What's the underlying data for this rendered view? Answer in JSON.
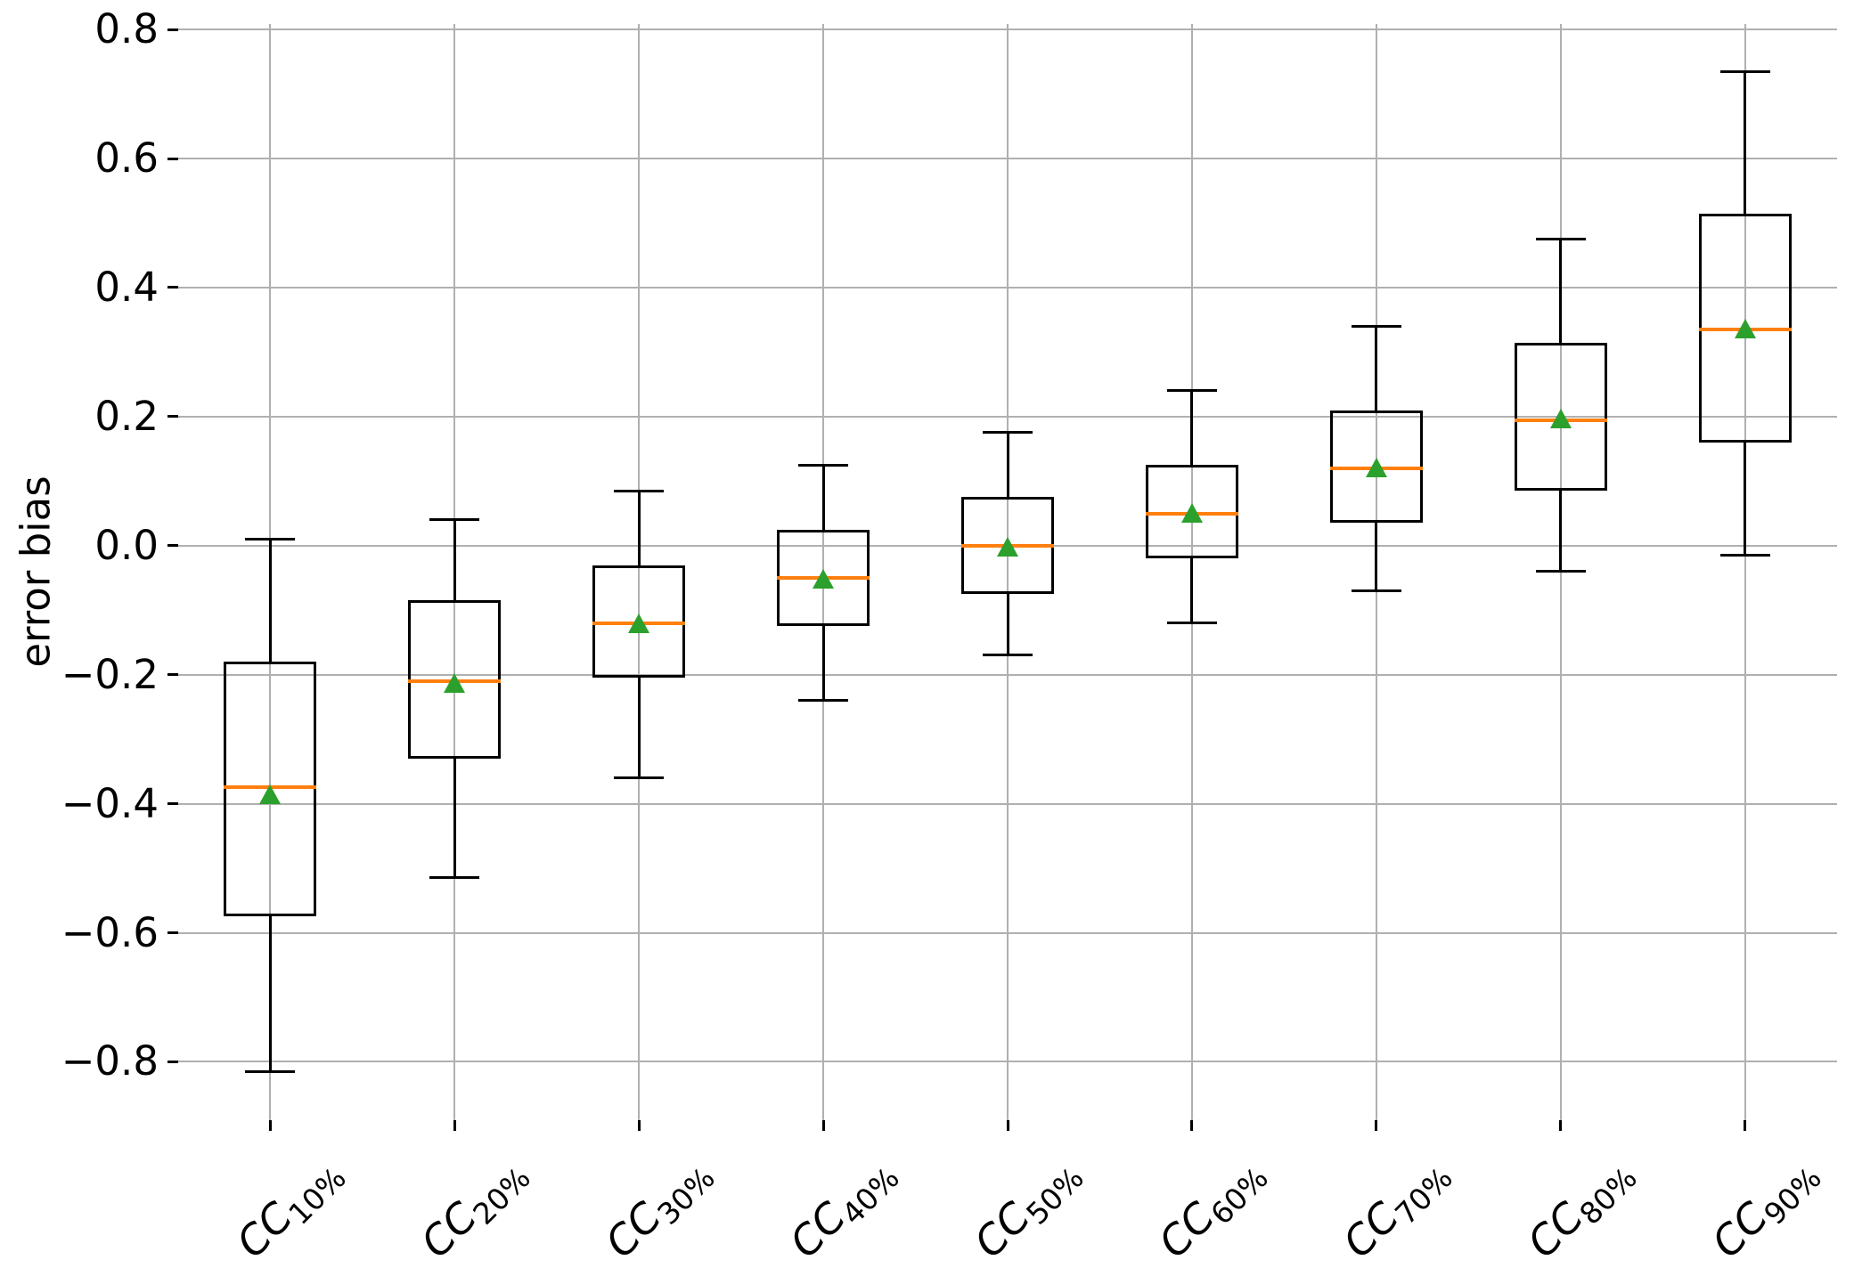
{
  "chart_data": {
    "type": "boxplot",
    "title": "",
    "xlabel": "",
    "ylabel": "error bias",
    "grid": true,
    "legend": "none",
    "ylim": [
      -0.8905,
      0.8085
    ],
    "yticks": [
      0.8,
      0.6,
      0.4,
      0.2,
      0.0,
      -0.2,
      -0.4,
      -0.6,
      -0.8
    ],
    "ytick_labels": [
      "0.8",
      "0.6",
      "0.4",
      "0.2",
      "0.0",
      "−0.2",
      "−0.4",
      "−0.6",
      "−0.8"
    ],
    "xticklabel_rotation": 45,
    "categories": [
      "CC 10%",
      "CC 20%",
      "CC 30%",
      "CC 40%",
      "CC 50%",
      "CC 60%",
      "CC 70%",
      "CC 80%",
      "CC 90%"
    ],
    "colors": {
      "box_line": "#000000",
      "whisker_line": "#000000",
      "median_line": "#ff7f0e",
      "mean_marker": "#2ca02c",
      "grid_line": "#b0b0b0"
    },
    "boxes": [
      {
        "label_main": "CC",
        "label_sub": "10%",
        "whisker_low": -0.815,
        "q1": -0.575,
        "median": -0.375,
        "mean": -0.385,
        "q3": -0.18,
        "whisker_high": 0.01
      },
      {
        "label_main": "CC",
        "label_sub": "20%",
        "whisker_low": -0.515,
        "q1": -0.33,
        "median": -0.21,
        "mean": -0.213,
        "q3": -0.085,
        "whisker_high": 0.04
      },
      {
        "label_main": "CC",
        "label_sub": "30%",
        "whisker_low": -0.36,
        "q1": -0.205,
        "median": -0.12,
        "mean": -0.12,
        "q3": -0.03,
        "whisker_high": 0.085
      },
      {
        "label_main": "CC",
        "label_sub": "40%",
        "whisker_low": -0.24,
        "q1": -0.125,
        "median": -0.05,
        "mean": -0.051,
        "q3": 0.025,
        "whisker_high": 0.125
      },
      {
        "label_main": "CC",
        "label_sub": "50%",
        "whisker_low": -0.17,
        "q1": -0.075,
        "median": 0.0,
        "mean": -0.001,
        "q3": 0.075,
        "whisker_high": 0.175
      },
      {
        "label_main": "CC",
        "label_sub": "60%",
        "whisker_low": -0.12,
        "q1": -0.02,
        "median": 0.05,
        "mean": 0.051,
        "q3": 0.125,
        "whisker_high": 0.24
      },
      {
        "label_main": "CC",
        "label_sub": "70%",
        "whisker_low": -0.07,
        "q1": 0.035,
        "median": 0.12,
        "mean": 0.121,
        "q3": 0.21,
        "whisker_high": 0.34
      },
      {
        "label_main": "CC",
        "label_sub": "80%",
        "whisker_low": -0.04,
        "q1": 0.085,
        "median": 0.195,
        "mean": 0.197,
        "q3": 0.315,
        "whisker_high": 0.475
      },
      {
        "label_main": "CC",
        "label_sub": "90%",
        "whisker_low": -0.015,
        "q1": 0.16,
        "median": 0.335,
        "mean": 0.337,
        "q3": 0.515,
        "whisker_high": 0.735
      }
    ]
  }
}
